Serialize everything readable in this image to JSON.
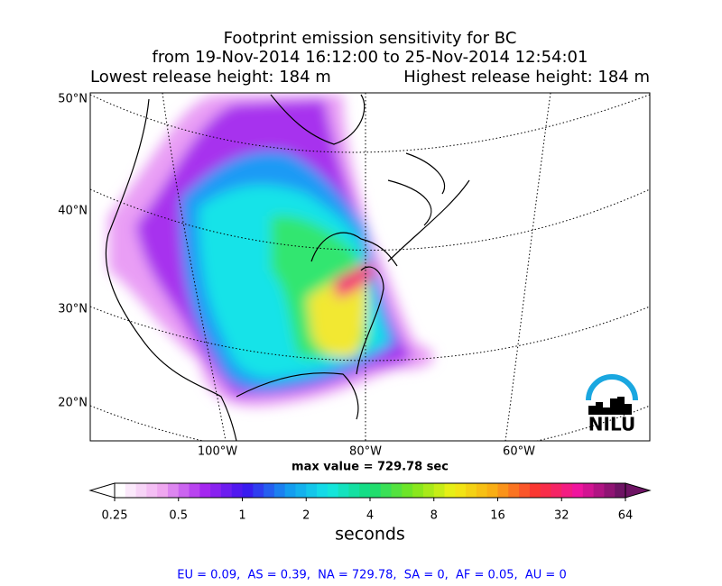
{
  "title": {
    "line1": "Footprint emission sensitivity for BC",
    "line2": "from 19-Nov-2014 16:12:00 to 25-Nov-2014 12:54:01",
    "lowest": "Lowest release height: 184 m",
    "highest": "Highest release height: 184 m"
  },
  "map": {
    "lat_labels": [
      "50°N",
      "40°N",
      "30°N",
      "20°N"
    ],
    "lon_labels": [
      "100°W",
      "80°W",
      "60°W"
    ],
    "logo": "NILU"
  },
  "max_value": "max value = 729.78 sec",
  "colorbar": {
    "tick_labels": [
      "0.25",
      "0.5",
      "1",
      "2",
      "4",
      "8",
      "16",
      "32",
      "64"
    ],
    "label": "seconds"
  },
  "footer": "EU = 0.09,  AS = 0.39,  NA = 729.78,  SA = 0,  AF = 0.05,  AU = 0"
}
